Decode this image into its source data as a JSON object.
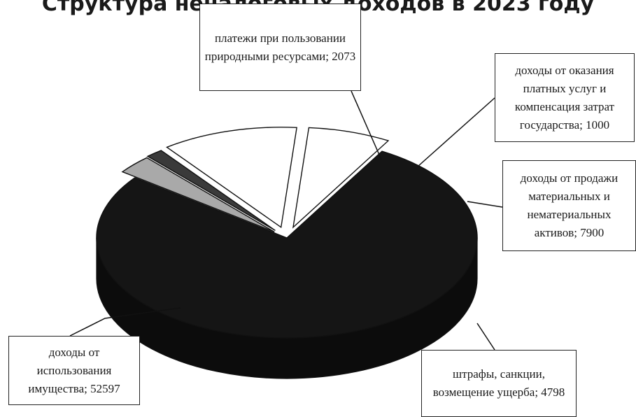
{
  "chart_data": {
    "type": "pie",
    "title": "Структура неналоговых доходов в 2023 году",
    "unit": "",
    "slices": [
      {
        "label": "доходы от использования имущества",
        "value": 52597,
        "color": "#151515"
      },
      {
        "label": "платежи при пользовании природными ресурсами",
        "value": 2073,
        "color": "#a9a9a9"
      },
      {
        "label": "доходы от оказания платных услуг и компенсация затрат государства",
        "value": 1000,
        "color": "#3a3a3a"
      },
      {
        "label": "доходы от продажи материальных и нематериальных активов",
        "value": 7900,
        "color": "#ffffff"
      },
      {
        "label": "штрафы, санкции, возмещение ущерба",
        "value": 4798,
        "color": "#ffffff"
      }
    ],
    "callouts": [
      {
        "text": "платежи при пользовании природными ресурсами; 2073"
      },
      {
        "text": "доходы от оказания платных услуг и компенсация затрат государства; 1000"
      },
      {
        "text": "доходы от продажи материальных и нематериальных активов; 7900"
      },
      {
        "text": "штрафы, санкции, возмещение ущерба; 4798"
      },
      {
        "text": "доходы от использования имущества; 52597"
      }
    ]
  }
}
